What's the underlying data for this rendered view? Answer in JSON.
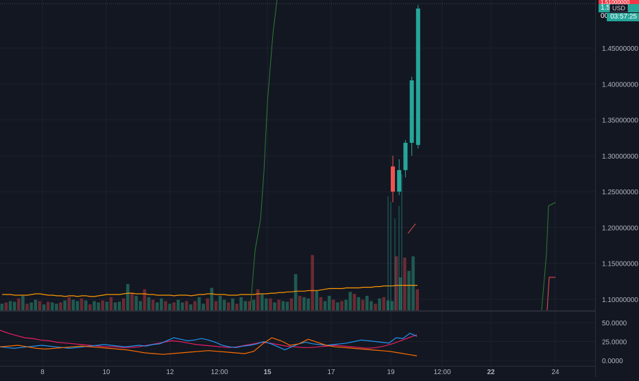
{
  "colors": {
    "background": "#131722",
    "grid": "#1e222d",
    "axis_text": "#b2b5be",
    "up": "#26a69a",
    "down": "#ef5350",
    "volume_up": "#1f5a50",
    "volume_down": "#6b2a33",
    "volume_ma": "#ff9800",
    "line_green": "#2e7d32",
    "rsi_blue": "#2196f3",
    "rsi_pink": "#e91e63",
    "rsi_orange": "#ff6d00"
  },
  "price_axis": {
    "labels": [
      "1.45000000",
      "1.40000000",
      "1.35000000",
      "1.30000000",
      "1.25000000",
      "1.20000000",
      "1.15000000",
      "1.10000000"
    ],
    "values": [
      1.45,
      1.4,
      1.35,
      1.3,
      1.25,
      1.2,
      1.15,
      1.1
    ],
    "tag_top": "1.51000000",
    "tag_price_prefix": "1.5",
    "tag_price_suffix": "00",
    "currency": "USD",
    "countdown": "03:57:25"
  },
  "indicator_axis": {
    "labels": [
      "50.0000",
      "25.0000",
      "0.0000"
    ],
    "values": [
      50,
      25,
      0
    ]
  },
  "time_axis": {
    "labels": [
      "8",
      "10",
      "12",
      "12:00",
      "15",
      "17",
      "19",
      "12:00",
      "22",
      "24"
    ],
    "bold": [
      false,
      false,
      false,
      false,
      true,
      false,
      false,
      false,
      true,
      false
    ]
  },
  "chart_data": {
    "type": "candlestick",
    "price_ylim": [
      1.09,
      1.51
    ],
    "candles": [
      {
        "o": 1.285,
        "c": 1.25,
        "h": 1.3,
        "l": 1.235
      },
      {
        "o": 1.25,
        "c": 1.28,
        "h": 1.295,
        "l": 1.245
      },
      {
        "o": 1.28,
        "c": 1.318,
        "h": 1.322,
        "l": 1.27
      },
      {
        "o": 1.318,
        "c": 1.405,
        "h": 1.41,
        "l": 1.3
      },
      {
        "o": 1.315,
        "c": 1.505,
        "h": 1.51,
        "l": 1.31
      }
    ],
    "volume_ylim": [
      0,
      120
    ],
    "volume": [
      10,
      12,
      14,
      13,
      18,
      22,
      10,
      12,
      16,
      14,
      9,
      13,
      12,
      10,
      12,
      15,
      20,
      16,
      14,
      18,
      15,
      9,
      14,
      12,
      15,
      13,
      20,
      12,
      13,
      18,
      40,
      26,
      22,
      14,
      32,
      20,
      16,
      12,
      18,
      14,
      10,
      12,
      16,
      12,
      14,
      9,
      14,
      20,
      10,
      18,
      34,
      14,
      22,
      16,
      12,
      18,
      10,
      20,
      14,
      14,
      16,
      32,
      24,
      18,
      18,
      12,
      16,
      14,
      13,
      18,
      55,
      22,
      20,
      18,
      84,
      30,
      20,
      14,
      22,
      16,
      12,
      14,
      16,
      28,
      25,
      20,
      16,
      22,
      14,
      10,
      18,
      20,
      15,
      14,
      82,
      50,
      80,
      60,
      82,
      32
    ],
    "volume_ma": [
      24,
      24,
      24,
      23,
      23,
      23,
      23,
      24,
      25,
      25,
      24,
      23,
      23,
      22,
      22,
      21,
      22,
      22,
      21,
      22,
      22,
      21,
      21,
      22,
      23,
      24,
      24,
      24,
      24,
      25,
      26,
      26,
      25,
      25,
      25,
      24,
      24,
      23,
      23,
      23,
      23,
      22,
      23,
      23,
      23,
      22,
      23,
      24,
      24,
      25,
      25,
      24,
      24,
      24,
      23,
      23,
      23,
      24,
      24,
      24,
      24,
      25,
      25,
      25,
      26,
      26,
      27,
      27,
      28,
      28,
      29,
      29,
      29,
      30,
      30,
      30,
      31,
      32,
      33,
      33,
      33,
      33,
      34,
      34,
      34,
      34,
      35,
      35,
      35,
      36,
      36,
      37,
      37,
      37,
      38,
      38,
      38,
      38,
      38,
      38
    ],
    "rsi_ylim": [
      0,
      55
    ],
    "rsi_blue": [
      18,
      17,
      16,
      17,
      18,
      19,
      20,
      19,
      18,
      17,
      16,
      17,
      18,
      19,
      20,
      21,
      20,
      19,
      18,
      19,
      20,
      19,
      21,
      22,
      26,
      30,
      28,
      26,
      27,
      29,
      27,
      24,
      20,
      18,
      17,
      19,
      20,
      22,
      25,
      22,
      18,
      14,
      18,
      22,
      24,
      22,
      21,
      20,
      21,
      22,
      23,
      25,
      27,
      26,
      25,
      24,
      23,
      30,
      29,
      36,
      32
    ],
    "rsi_pink": [
      40,
      36,
      33,
      30,
      29,
      27,
      26,
      24,
      23,
      22,
      21,
      20,
      19,
      18,
      18,
      17,
      17,
      18,
      20,
      22,
      24,
      26,
      25,
      23,
      21,
      20,
      19,
      18,
      17,
      18,
      20,
      22,
      24,
      23,
      21,
      19,
      18,
      17,
      17,
      18,
      19,
      20,
      19,
      18,
      17,
      16,
      17,
      19,
      22,
      26,
      30,
      34
    ],
    "rsi_orange": [
      18,
      19,
      20,
      18,
      16,
      15,
      16,
      17,
      18,
      19,
      18,
      17,
      16,
      15,
      14,
      12,
      10,
      9,
      8,
      9,
      10,
      11,
      12,
      13,
      12,
      11,
      10,
      9,
      12,
      22,
      30,
      26,
      20,
      22,
      28,
      24,
      20,
      18,
      17,
      16,
      15,
      14,
      13,
      12,
      10,
      8,
      6
    ]
  }
}
